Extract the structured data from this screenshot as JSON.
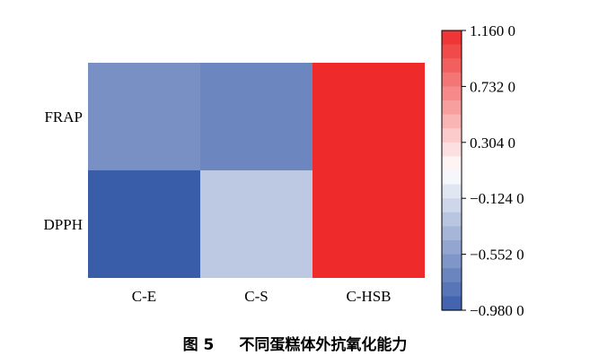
{
  "chart_data": {
    "type": "heatmap",
    "rows": [
      "FRAP",
      "DPPH"
    ],
    "columns": [
      "C-E",
      "C-S",
      "C-HSB"
    ],
    "values": [
      [
        -0.64,
        -0.71,
        1.16
      ],
      [
        -0.98,
        -0.27,
        1.16
      ]
    ],
    "colorbar": {
      "min": -0.98,
      "max": 1.16,
      "ticks": [
        1.16,
        0.732,
        0.304,
        -0.124,
        -0.552,
        -0.98
      ],
      "tick_labels": [
        "1.160 0",
        "0.732 0",
        "0.304 0",
        "−0.124 0",
        "−0.552 0",
        "−0.980 0"
      ],
      "low_color": "#3a5daa",
      "mid_color": "#ffffff",
      "high_color": "#ee2a2a"
    }
  },
  "caption": {
    "figure_number": "图 5",
    "title": "不同蛋糕体外抗氧化能力"
  }
}
